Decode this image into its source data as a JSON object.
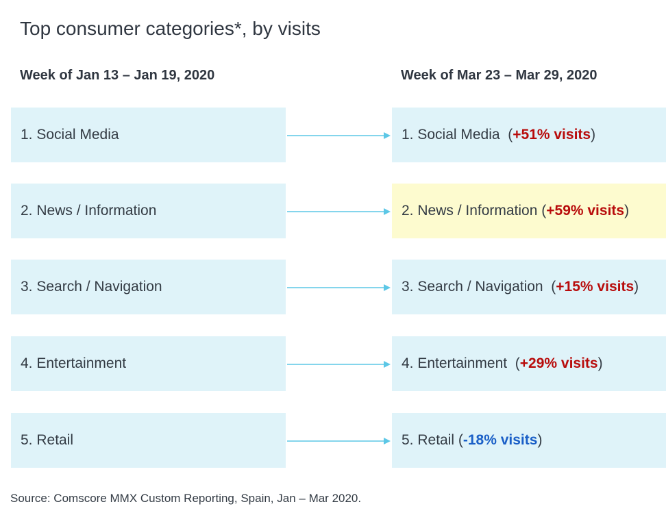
{
  "title": "Top consumer categories*, by visits",
  "left_header": "Week of Jan 13 – Jan 19, 2020",
  "right_header": "Week of Mar 23 – Mar 29, 2020",
  "rows": [
    {
      "left_label": "1. Social Media",
      "right_label": "1. Social Media",
      "open": "  (",
      "change": "+51% visits",
      "close": ")",
      "change_color": "#b80c0c",
      "highlight": false
    },
    {
      "left_label": "2. News / Information",
      "right_label": "2. News / Information",
      "open": " (",
      "change": "+59% visits",
      "close": ")",
      "change_color": "#b80c0c",
      "highlight": true,
      "highlight_color": "#fdfbcf"
    },
    {
      "left_label": "3. Search / Navigation",
      "right_label": "3. Search / Navigation",
      "open": "  (",
      "change": "+15% visits",
      "close": ")",
      "change_color": "#b80c0c",
      "highlight": false
    },
    {
      "left_label": "4. Entertainment",
      "right_label": "4. Entertainment",
      "open": "  (",
      "change": "+29% visits",
      "close": ")",
      "change_color": "#b80c0c",
      "highlight": false
    },
    {
      "left_label": "5. Retail",
      "right_label": "5. Retail",
      "open": " (",
      "change": "-18% visits",
      "close": ")",
      "change_color": "#1a5fc7",
      "highlight": false
    }
  ],
  "box_color": "#dff3f9",
  "arrow_color": "#5cc7e6",
  "source": "Source: Comscore MMX Custom Reporting,  Spain, Jan – Mar 2020."
}
